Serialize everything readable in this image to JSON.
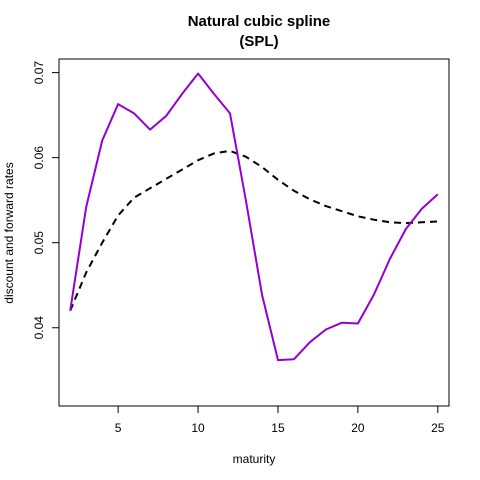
{
  "chart_data": {
    "type": "line",
    "title_lines": [
      "Natural cubic spline",
      "(SPL)"
    ],
    "xlabel": "maturity",
    "ylabel": "discount and forward rates",
    "xlim": [
      1.3,
      25.7
    ],
    "ylim": [
      0.0308,
      0.0716
    ],
    "xticks": [
      5,
      10,
      15,
      20,
      25
    ],
    "yticks": [
      0.04,
      0.05,
      0.06,
      0.07
    ],
    "ytick_labels": [
      "0.04",
      "0.05",
      "0.06",
      "0.07"
    ],
    "legend": "none",
    "grid": false,
    "series": [
      {
        "style": "dashed",
        "color": "#000000",
        "x": [
          2,
          3,
          4,
          5,
          6,
          7,
          8,
          9,
          10,
          11,
          12,
          13,
          14,
          15,
          16,
          17,
          18,
          19,
          20,
          21,
          22,
          23,
          24,
          25
        ],
        "y": [
          0.042,
          0.0465,
          0.05,
          0.0532,
          0.0553,
          0.0564,
          0.0575,
          0.0586,
          0.0597,
          0.0605,
          0.0608,
          0.0601,
          0.0589,
          0.0574,
          0.0561,
          0.0551,
          0.0543,
          0.0537,
          0.0531,
          0.0527,
          0.0524,
          0.0523,
          0.0524,
          0.0525
        ]
      },
      {
        "style": "solid",
        "color": "#9400d3",
        "x": [
          2,
          3,
          4,
          5,
          6,
          7,
          8,
          9,
          10,
          11,
          12,
          13,
          14,
          15,
          16,
          17,
          18,
          19,
          20,
          21,
          22,
          23,
          24,
          25
        ],
        "y": [
          0.042,
          0.0542,
          0.062,
          0.0663,
          0.0652,
          0.0633,
          0.0649,
          0.0675,
          0.0699,
          0.0675,
          0.0652,
          0.0549,
          0.0439,
          0.0362,
          0.0363,
          0.0383,
          0.0398,
          0.0406,
          0.0405,
          0.0439,
          0.0481,
          0.0516,
          0.054,
          0.0557
        ]
      }
    ]
  }
}
